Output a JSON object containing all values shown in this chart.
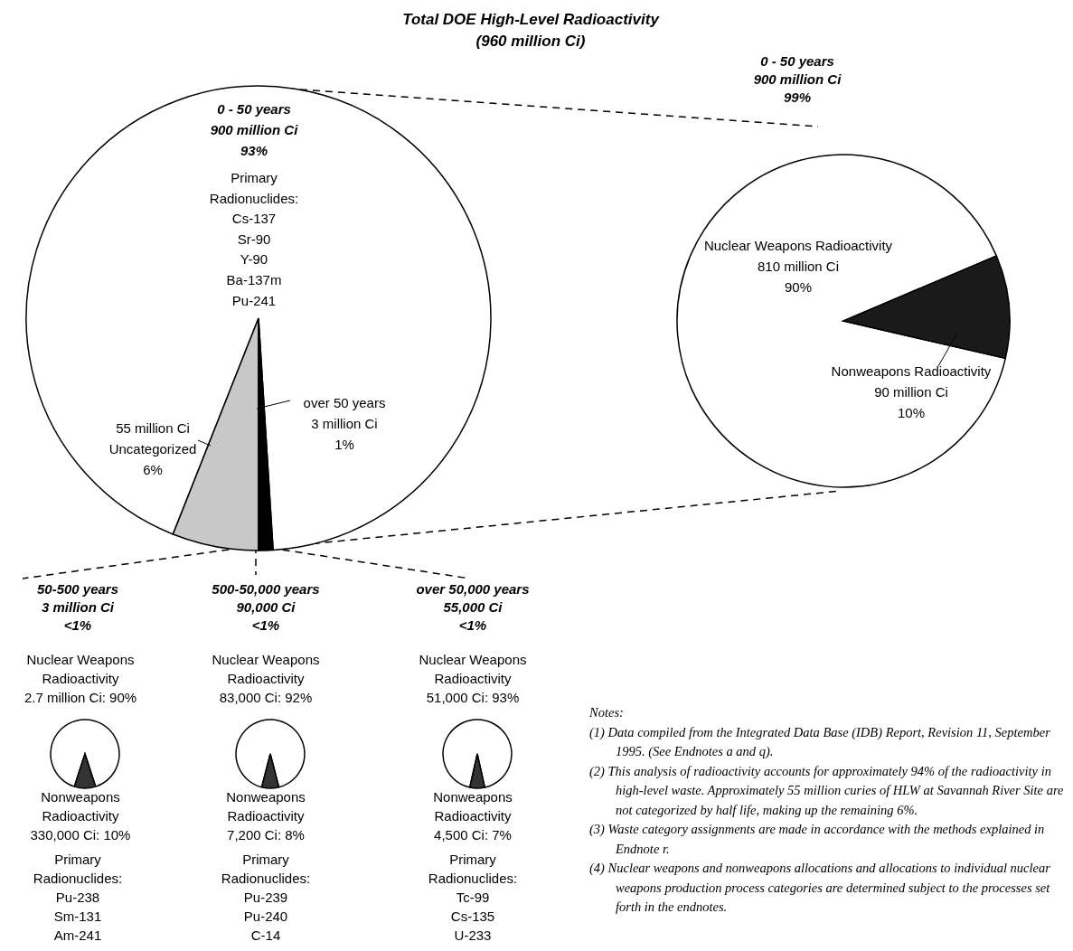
{
  "chart_data": [
    {
      "type": "pie",
      "title": "Total DOE High-Level Radioactivity\n(960 million Ci)",
      "categories": [
        "0 - 50 years\n900 million Ci\n93%",
        "55 million Ci\nUncategorized\n6%",
        "over 50 years\n3 million Ci\n1%"
      ],
      "values": [
        93,
        6,
        1
      ],
      "colors": [
        "#ffffff",
        "#c8c8c8",
        "#000000"
      ],
      "annotations": [
        "Primary\nRadionuclides:\nCs-137\nSr-90\nY-90\nBa-137m\nPu-241",
        "Notes:",
        "(1) Data compiled from the Integrated Data Base (IDB) Report, Revision 11, September 1995.  (See Endnotes a and q).",
        "(2) This analysis of radioactivity accounts for approximately 94% of the radioactivity in high-level waste.  Approximately 55 million curies of HLW at Savannah River Site are not categorized by half life, making up the remaining 6%.",
        "(3) Waste category assignments are made in accordance with the methods explained in Endnote r.",
        "(4) Nuclear weapons and nonweapons allocations and allocations to individual nuclear weapons production process categories are determined subject to the processes set forth in the endnotes."
      ]
    },
    {
      "type": "pie",
      "title": "0 - 50 years\n900 million Ci\n99%",
      "categories": [
        "Nuclear Weapons Radioactivity\n810 million Ci\n90%",
        "Nonweapons Radioactivity\n90 million Ci\n10%"
      ],
      "values": [
        90,
        10
      ],
      "colors": [
        "#ffffff",
        "#1a1a1a"
      ]
    },
    {
      "type": "pie",
      "title": "50-500 years\n3 million Ci\n<1%",
      "categories": [
        "Nuclear Weapons\nRadioactivity\n2.7 million Ci: 90%",
        "Nonweapons\nRadioactivity\n330,000 Ci: 10%"
      ],
      "values": [
        90,
        10
      ],
      "colors": [
        "#ffffff",
        "#333333"
      ],
      "annotations": [
        "Primary\nRadionuclides:\nPu-238\nSm-131\nAm-241"
      ]
    },
    {
      "type": "pie",
      "title": "500-50,000 years\n90,000 Ci\n<1%",
      "categories": [
        "Nuclear Weapons\nRadioactivity\n83,000 Ci: 92%",
        "Nonweapons\nRadioactivity\n7,200 Ci: 8%"
      ],
      "values": [
        92,
        8
      ],
      "colors": [
        "#ffffff",
        "#333333"
      ],
      "annotations": [
        "Primary\nRadionuclides:\nPu-239\nPu-240\nC-14"
      ]
    },
    {
      "type": "pie",
      "title": "over 50,000 years\n55,000 Ci\n<1%",
      "categories": [
        "Nuclear Weapons\nRadioactivity\n51,000 Ci: 93%",
        "Nonweapons\nRadioactivity\n4,500 Ci: 7%"
      ],
      "values": [
        93,
        7
      ],
      "colors": [
        "#ffffff",
        "#333333"
      ],
      "annotations": [
        "Primary\nRadionuclides:\nTc-99\nCs-135\nU-233"
      ]
    }
  ]
}
